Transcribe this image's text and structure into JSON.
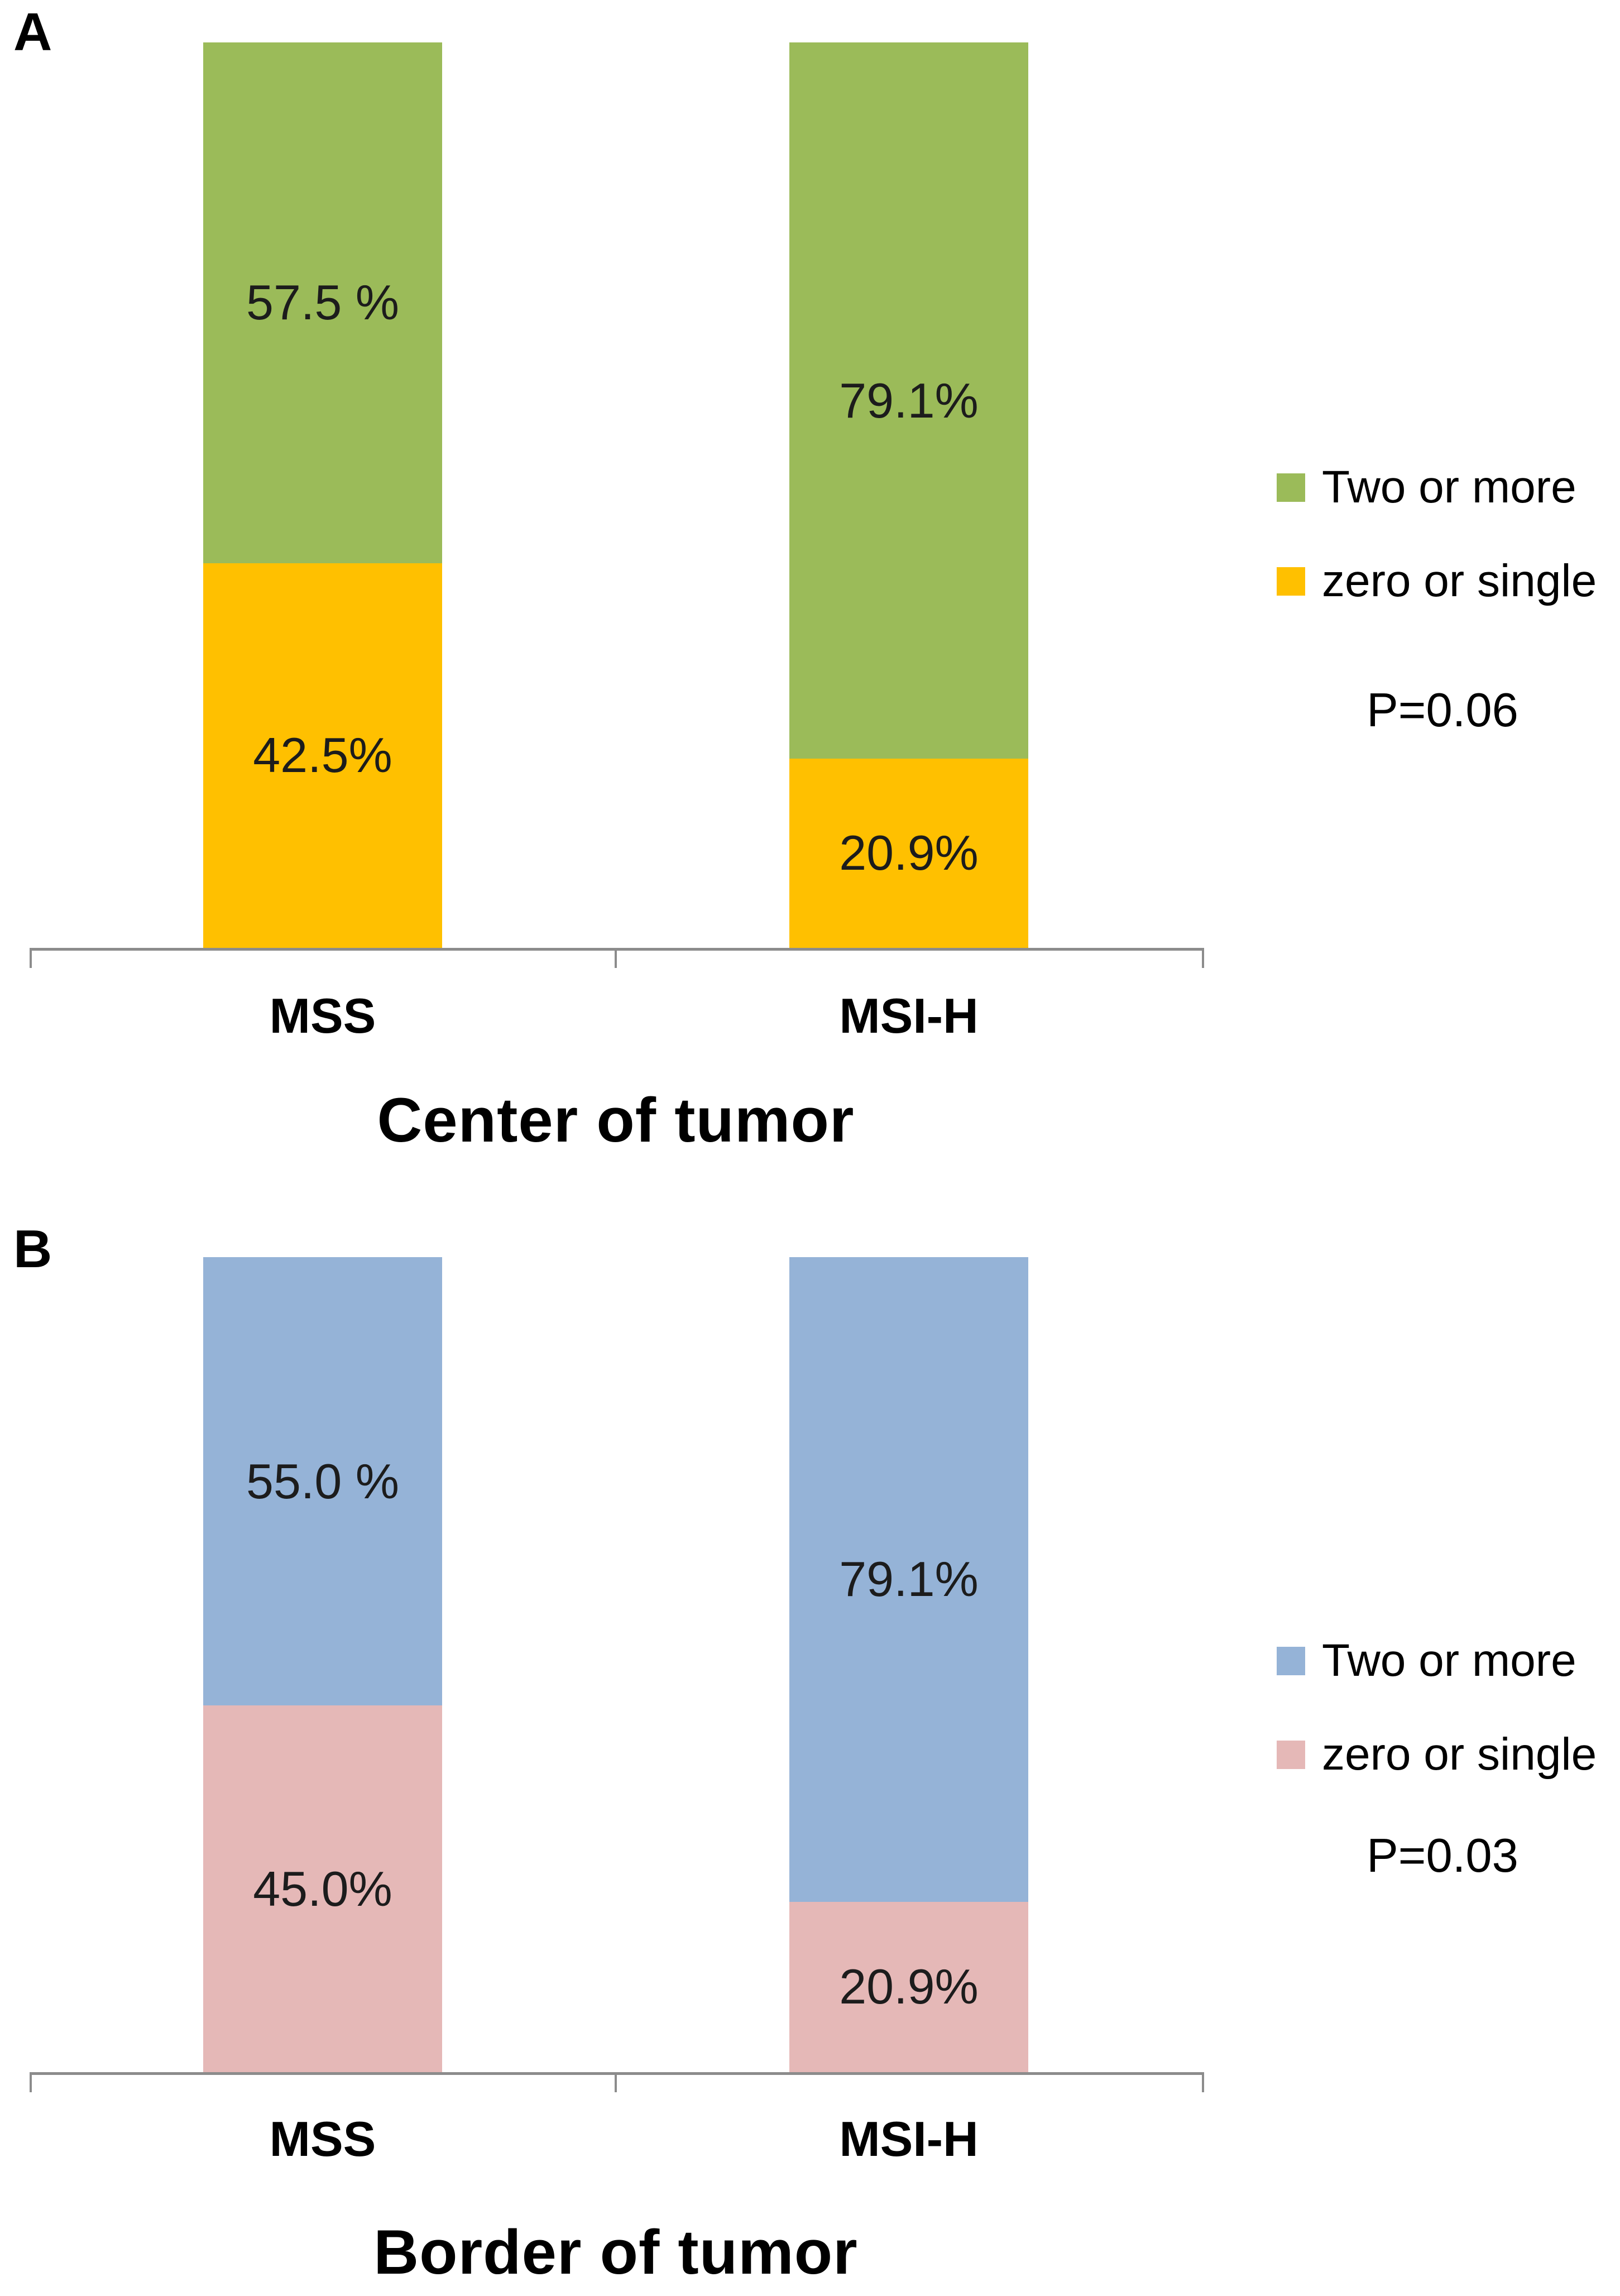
{
  "figure": {
    "background": "#ffffff"
  },
  "style": {
    "axis_color": "#8c8c8c",
    "data_label_color": "#1c1c1c",
    "text_color": "#000000"
  },
  "chart_data": [
    {
      "panel_label": "A",
      "type": "bar",
      "stacked": true,
      "unit": "percent",
      "title": "Center of tumor",
      "categories": [
        "MSS",
        "MSI-H"
      ],
      "series": [
        {
          "name": "Two or more",
          "color": "#9bbb59",
          "values": [
            57.5,
            79.1
          ],
          "labels": [
            "57.5 %",
            "79.1%"
          ]
        },
        {
          "name": "zero or single",
          "color": "#ffc000",
          "values": [
            42.5,
            20.9
          ],
          "labels": [
            "42.5%",
            "20.9%"
          ]
        }
      ],
      "p_value": "P=0.06",
      "ylim": [
        0,
        100
      ],
      "grid": false,
      "legend_position": "right"
    },
    {
      "panel_label": "B",
      "type": "bar",
      "stacked": true,
      "unit": "percent",
      "title": "Border of tumor",
      "categories": [
        "MSS",
        "MSI-H"
      ],
      "series": [
        {
          "name": "Two or more",
          "color": "#95b3d7",
          "values": [
            55.0,
            79.1
          ],
          "labels": [
            "55.0 %",
            "79.1%"
          ]
        },
        {
          "name": "zero or single",
          "color": "#e5b8b7",
          "values": [
            45.0,
            20.9
          ],
          "labels": [
            "45.0%",
            "20.9%"
          ]
        }
      ],
      "p_value": "P=0.03",
      "ylim": [
        0,
        100
      ],
      "grid": false,
      "legend_position": "right"
    }
  ]
}
